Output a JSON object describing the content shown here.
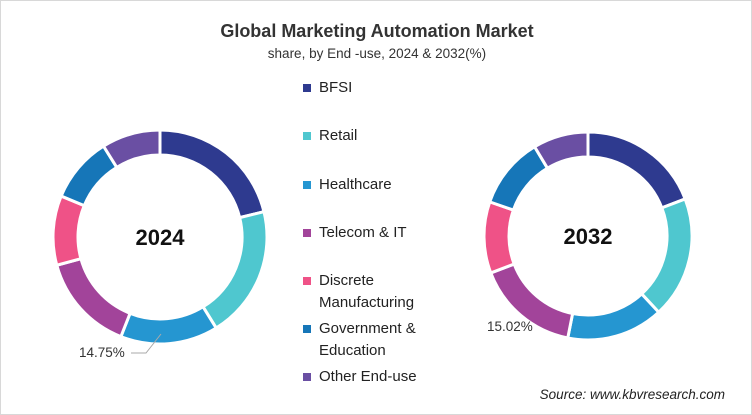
{
  "chart_data": [
    {
      "type": "pie",
      "title": "Global Marketing Automation Market",
      "subtitle": "share, by End -use, 2024 & 2032(%)",
      "center_label": "2024",
      "categories": [
        "BFSI",
        "Retail",
        "Healthcare",
        "Telecom & IT",
        "Discrete Manufacturing",
        "Government & Education",
        "Other End-use"
      ],
      "values": [
        21.2,
        20.0,
        14.75,
        14.8,
        10.5,
        9.9,
        8.85
      ],
      "data_labels": [
        {
          "category": "Healthcare",
          "text": "14.75%"
        }
      ],
      "hole": true
    },
    {
      "type": "pie",
      "center_label": "2032",
      "categories": [
        "BFSI",
        "Retail",
        "Healthcare",
        "Telecom & IT",
        "Discrete Manufacturing",
        "Government & Education",
        "Other End-use"
      ],
      "values": [
        19.2,
        18.9,
        15.02,
        16.1,
        11.1,
        11.1,
        8.58
      ],
      "data_labels": [
        {
          "category": "Healthcare",
          "text": "15.02%"
        }
      ],
      "hole": true
    }
  ],
  "title": "Global Marketing Automation Market",
  "subtitle": "share, by End -use, 2024 & 2032(%)",
  "legend": [
    {
      "label": "BFSI",
      "color": "#2e3a8f"
    },
    {
      "label": "Retail",
      "color": "#4fc7cf"
    },
    {
      "label": "Healthcare",
      "color": "#2596d1"
    },
    {
      "label": "Telecom & IT",
      "color": "#a2449a"
    },
    {
      "label": "Discrete Manufacturing",
      "color": "#ef5287"
    },
    {
      "label": "Government & Education",
      "color": "#1676b8"
    },
    {
      "label": "Other End-use",
      "color": "#6a4fa3"
    }
  ],
  "source": "Source: www.kbvresearch.com"
}
